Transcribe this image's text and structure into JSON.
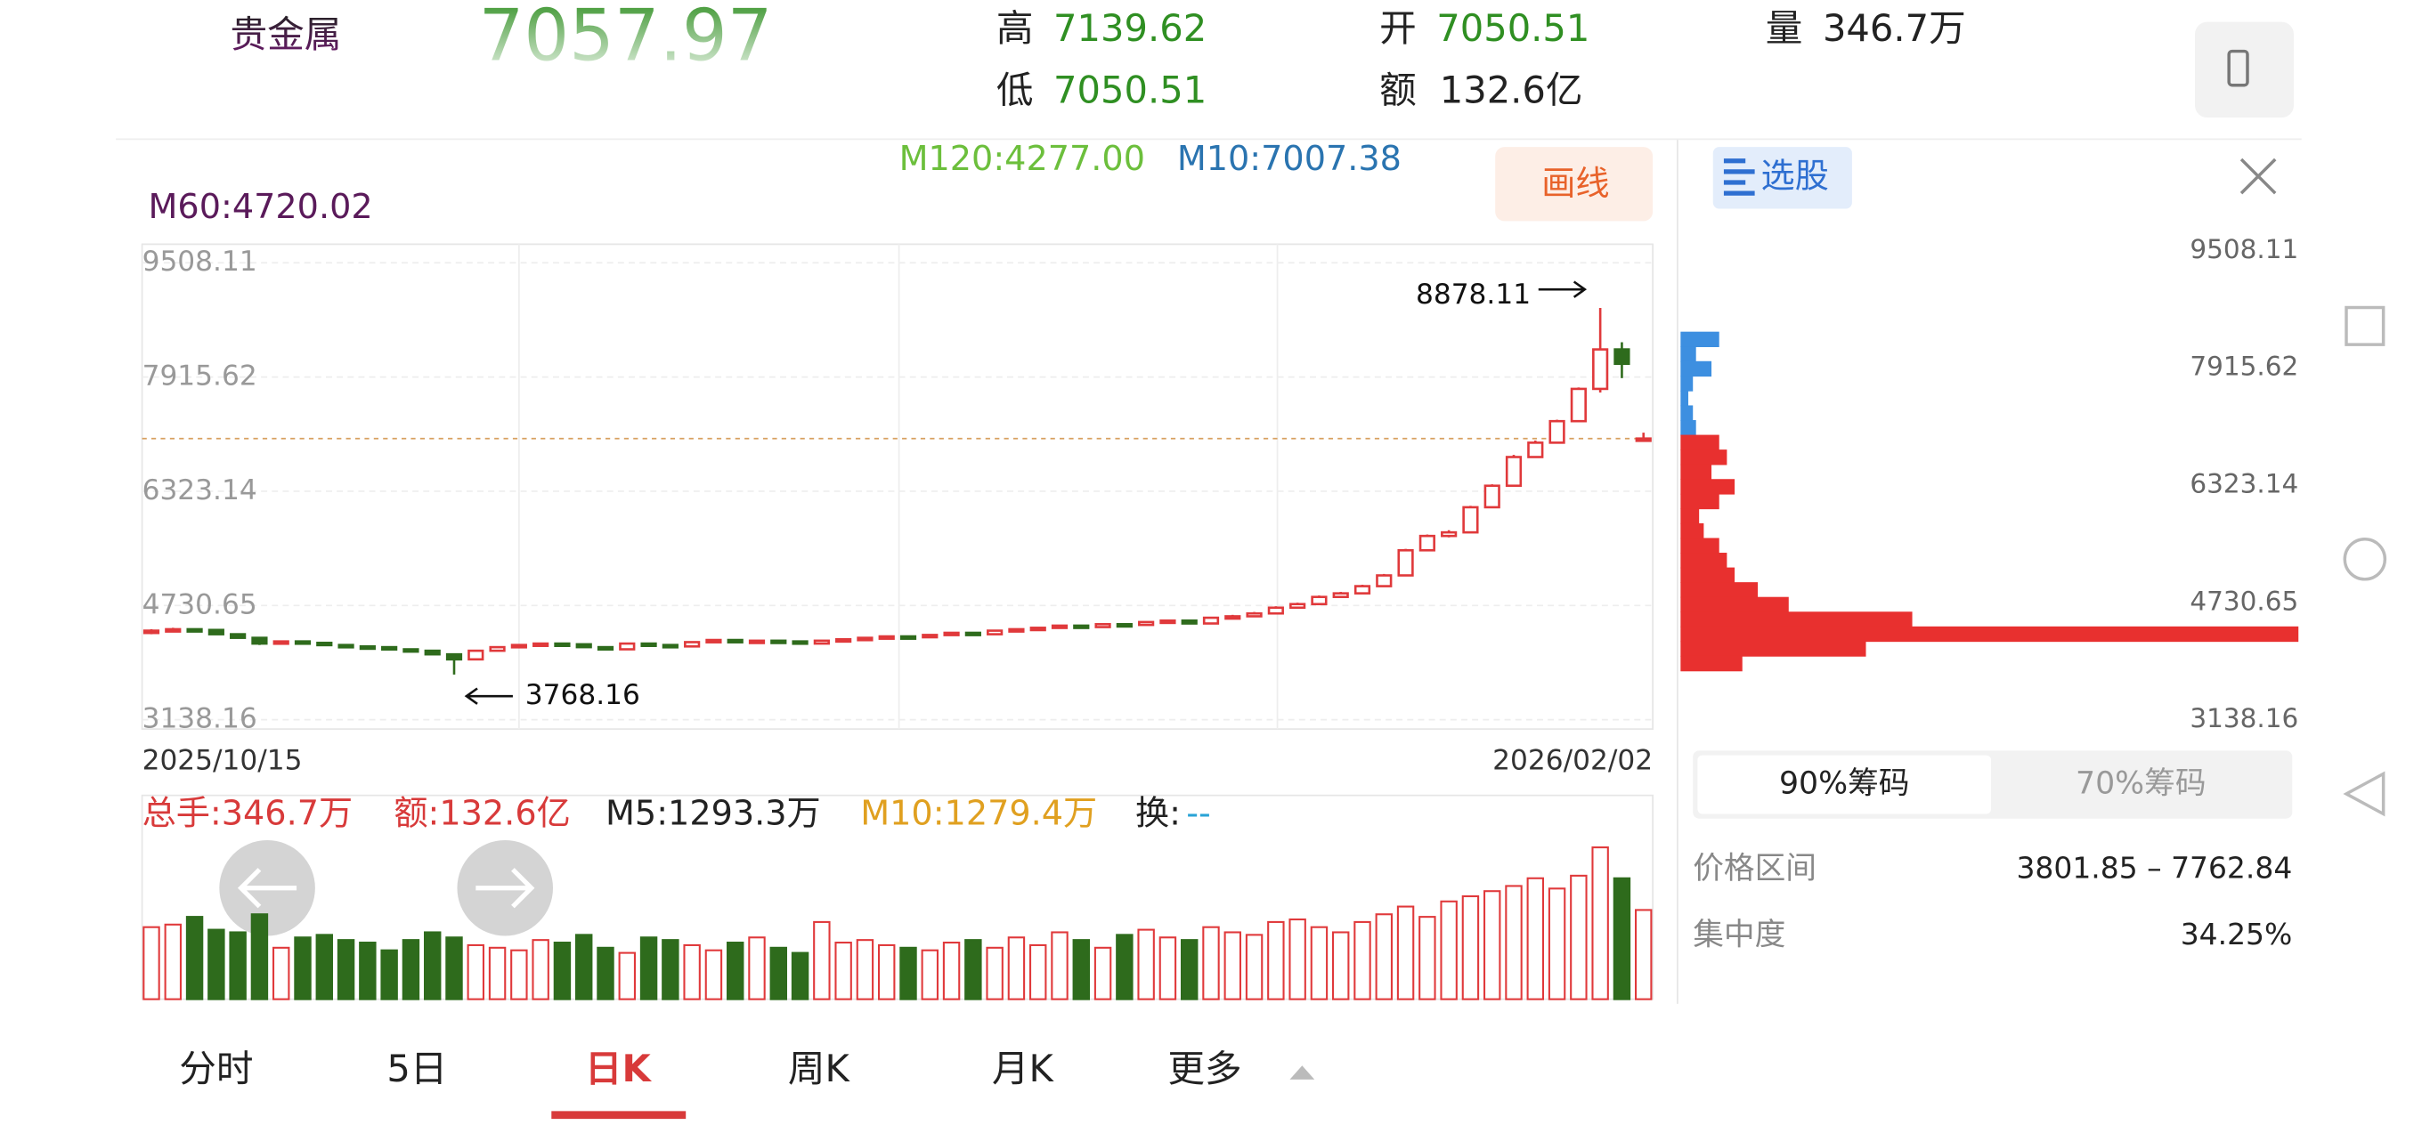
{
  "header": {
    "name": "贵金属",
    "labels": {
      "high": "高",
      "low": "低",
      "open": "开",
      "amount": "额",
      "volume": "量"
    },
    "amount": "132.6亿",
    "volume": "346.7万"
  },
  "indicators": {
    "ma60": "M60:4720.02",
    "ma120": "M120:4277.00",
    "ma10": "M10:7007.38"
  },
  "draw_button": "画线",
  "stock_pick_button": "选股",
  "chart_data": {
    "type": "candlestick",
    "ylim": [
      3138.16,
      9508.11
    ],
    "yticks": [
      3138.16,
      4730.65,
      6323.14,
      7915.62,
      9508.11
    ],
    "grid": true,
    "x_start": "2025/10/15",
    "x_end": "2026/02/02",
    "up_color": "#e0393b",
    "down_color": "#2e6b1c",
    "candles": [
      [
        4350,
        4400,
        4330,
        4380
      ],
      [
        4380,
        4420,
        4360,
        4400
      ],
      [
        4400,
        4410,
        4370,
        4390
      ],
      [
        4390,
        4400,
        4320,
        4330
      ],
      [
        4330,
        4340,
        4270,
        4280
      ],
      [
        4280,
        4290,
        4180,
        4200
      ],
      [
        4200,
        4240,
        4190,
        4230
      ],
      [
        4230,
        4240,
        4200,
        4210
      ],
      [
        4210,
        4220,
        4170,
        4180
      ],
      [
        4180,
        4190,
        4150,
        4160
      ],
      [
        4160,
        4170,
        4130,
        4150
      ],
      [
        4150,
        4160,
        4110,
        4120
      ],
      [
        4120,
        4130,
        4090,
        4100
      ],
      [
        4100,
        4110,
        4040,
        4050
      ],
      [
        4050,
        4060,
        3768.16,
        3980
      ],
      [
        3980,
        4110,
        3970,
        4100
      ],
      [
        4100,
        4160,
        4090,
        4150
      ],
      [
        4150,
        4190,
        4140,
        4180
      ],
      [
        4180,
        4210,
        4170,
        4200
      ],
      [
        4200,
        4210,
        4180,
        4190
      ],
      [
        4190,
        4200,
        4140,
        4150
      ],
      [
        4150,
        4160,
        4110,
        4120
      ],
      [
        4120,
        4210,
        4110,
        4200
      ],
      [
        4200,
        4210,
        4170,
        4180
      ],
      [
        4180,
        4190,
        4150,
        4160
      ],
      [
        4160,
        4230,
        4150,
        4220
      ],
      [
        4220,
        4260,
        4210,
        4250
      ],
      [
        4250,
        4260,
        4210,
        4220
      ],
      [
        4220,
        4250,
        4210,
        4240
      ],
      [
        4240,
        4250,
        4220,
        4230
      ],
      [
        4230,
        4240,
        4190,
        4200
      ],
      [
        4200,
        4250,
        4190,
        4240
      ],
      [
        4240,
        4270,
        4230,
        4260
      ],
      [
        4260,
        4290,
        4250,
        4280
      ],
      [
        4280,
        4310,
        4270,
        4300
      ],
      [
        4300,
        4310,
        4280,
        4290
      ],
      [
        4290,
        4330,
        4280,
        4320
      ],
      [
        4320,
        4360,
        4310,
        4350
      ],
      [
        4350,
        4360,
        4320,
        4330
      ],
      [
        4330,
        4390,
        4320,
        4380
      ],
      [
        4380,
        4410,
        4370,
        4400
      ],
      [
        4400,
        4430,
        4390,
        4420
      ],
      [
        4420,
        4460,
        4410,
        4450
      ],
      [
        4450,
        4460,
        4420,
        4430
      ],
      [
        4430,
        4480,
        4420,
        4470
      ],
      [
        4470,
        4480,
        4450,
        4460
      ],
      [
        4460,
        4510,
        4450,
        4500
      ],
      [
        4500,
        4530,
        4490,
        4520
      ],
      [
        4520,
        4530,
        4470,
        4480
      ],
      [
        4480,
        4570,
        4470,
        4560
      ],
      [
        4560,
        4600,
        4550,
        4580
      ],
      [
        4580,
        4640,
        4570,
        4620
      ],
      [
        4620,
        4720,
        4610,
        4700
      ],
      [
        4700,
        4770,
        4690,
        4750
      ],
      [
        4750,
        4870,
        4740,
        4850
      ],
      [
        4850,
        4920,
        4840,
        4900
      ],
      [
        4900,
        5020,
        4890,
        5000
      ],
      [
        5000,
        5170,
        4990,
        5150
      ],
      [
        5150,
        5520,
        5140,
        5500
      ],
      [
        5500,
        5720,
        5490,
        5700
      ],
      [
        5700,
        5780,
        5680,
        5750
      ],
      [
        5750,
        6120,
        5740,
        6100
      ],
      [
        6100,
        6420,
        6090,
        6400
      ],
      [
        6400,
        6830,
        6390,
        6800
      ],
      [
        6800,
        7030,
        6790,
        7000
      ],
      [
        7000,
        7320,
        6990,
        7300
      ],
      [
        7300,
        7770,
        7290,
        7750
      ],
      [
        7750,
        8878.11,
        7700,
        8300
      ],
      [
        8300,
        8400,
        7900,
        8100
      ],
      [
        7050.51,
        7139.62,
        7050.51,
        7057.97
      ]
    ]
  },
  "volume": {
    "values": [
      280,
      290,
      320,
      270,
      260,
      330,
      200,
      240,
      250,
      230,
      220,
      190,
      230,
      260,
      240,
      210,
      200,
      190,
      230,
      220,
      250,
      200,
      180,
      240,
      230,
      210,
      190,
      220,
      240,
      200,
      180,
      300,
      220,
      230,
      210,
      200,
      190,
      220,
      230,
      200,
      240,
      210,
      260,
      230,
      200,
      250,
      270,
      240,
      230,
      280,
      260,
      250,
      300,
      310,
      280,
      260,
      300,
      330,
      360,
      320,
      380,
      400,
      420,
      440,
      470,
      430,
      480,
      590,
      470,
      346.7
    ],
    "info": {
      "total": "总手:346.7万",
      "amount": "额:132.6亿",
      "ma5": "M5:1293.3万",
      "ma10": "M10:1279.4万",
      "turnover_label": "换:",
      "turnover": "--"
    }
  },
  "chips": {
    "prices": [
      8300,
      8100,
      7900,
      7700,
      7500,
      7300,
      7100,
      6900,
      6700,
      6500,
      6300,
      6100,
      5900,
      5700,
      5500,
      5300,
      5100,
      4900,
      4700,
      4500,
      4300,
      4100,
      3900
    ],
    "values": [
      25,
      10,
      20,
      8,
      5,
      8,
      10,
      25,
      30,
      20,
      35,
      25,
      12,
      15,
      25,
      30,
      35,
      50,
      70,
      150,
      400,
      120,
      40
    ],
    "above_color": "#3d8fe0",
    "below_color": "#e8302f",
    "tabs": [
      "90%筹码",
      "70%筹码"
    ],
    "range_label": "价格区间",
    "range": "3801.85 – 7762.84",
    "concentration_label": "集中度",
    "concentration": "34.25%"
  },
  "tabs": [
    "分时",
    "5日",
    "日K",
    "周K",
    "月K",
    "更多"
  ],
  "active_tab": 2
}
